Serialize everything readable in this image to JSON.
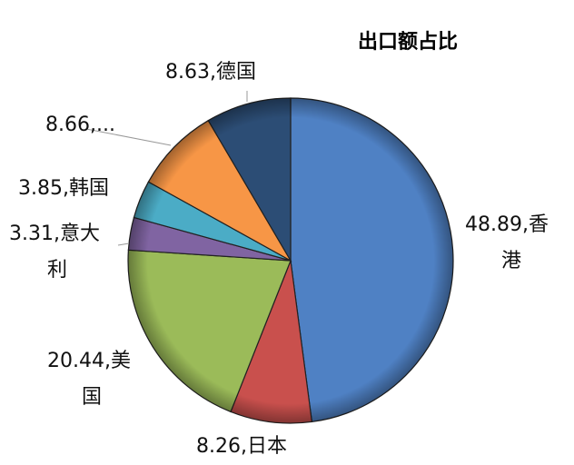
{
  "chart_data": {
    "type": "pie",
    "title": "出口额占比",
    "start": "top",
    "direction": "clockwise",
    "slices": [
      {
        "name": "香港",
        "value": 48.89,
        "label_lines": [
          "48.89,香",
          "港"
        ],
        "color": "#4f81c4"
      },
      {
        "name": "日本",
        "value": 8.26,
        "label_lines": [
          "8.26,日本"
        ],
        "color": "#c9504d"
      },
      {
        "name": "美国",
        "value": 20.44,
        "label_lines": [
          "20.44,美",
          "国"
        ],
        "color": "#9bbb59"
      },
      {
        "name": "意大利",
        "value": 3.31,
        "label_lines": [
          "3.31,意大",
          "利"
        ],
        "color": "#8064a2"
      },
      {
        "name": "韩国",
        "value": 3.85,
        "label_lines": [
          "3.85,韩国"
        ],
        "color": "#4bacc6"
      },
      {
        "name": "",
        "value": 8.66,
        "label_lines": [
          "8.66,..."
        ],
        "color": "#f79646"
      },
      {
        "name": "德国",
        "value": 8.63,
        "label_lines": [
          "8.63,德国"
        ],
        "color": "#2c4d75"
      }
    ]
  }
}
